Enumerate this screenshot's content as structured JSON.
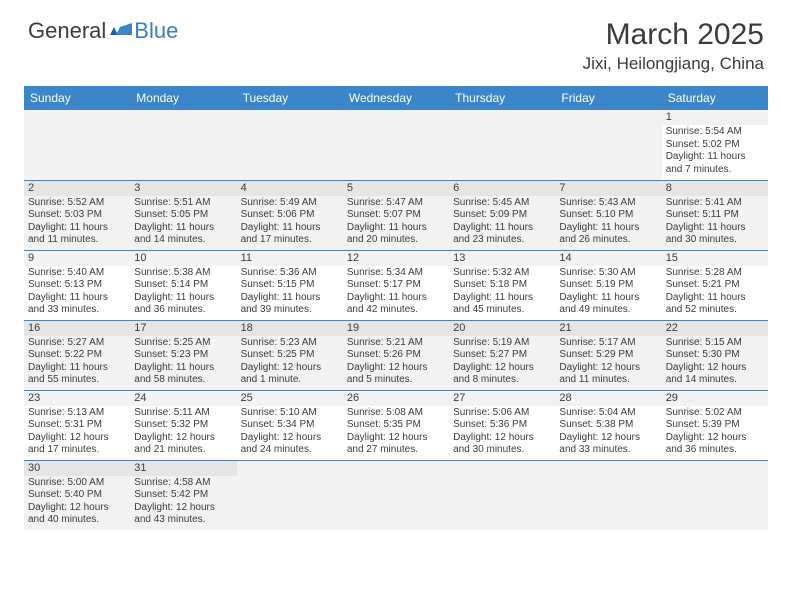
{
  "logo": {
    "general": "General",
    "blue": "Blue"
  },
  "colors": {
    "header_bg": "#3a86c8",
    "header_text": "#ffffff",
    "row_alt": "#f2f2f2",
    "border": "#3a86c8",
    "text": "#3c3c3c",
    "logo_blue": "#3a7fc2"
  },
  "title": "March 2025",
  "location": "Jixi, Heilongjiang, China",
  "weekdays": [
    "Sunday",
    "Monday",
    "Tuesday",
    "Wednesday",
    "Thursday",
    "Friday",
    "Saturday"
  ],
  "weeks": [
    [
      null,
      null,
      null,
      null,
      null,
      null,
      {
        "n": "1",
        "sr": "Sunrise: 5:54 AM",
        "ss": "Sunset: 5:02 PM",
        "dl1": "Daylight: 11 hours",
        "dl2": "and 7 minutes."
      }
    ],
    [
      {
        "n": "2",
        "sr": "Sunrise: 5:52 AM",
        "ss": "Sunset: 5:03 PM",
        "dl1": "Daylight: 11 hours",
        "dl2": "and 11 minutes."
      },
      {
        "n": "3",
        "sr": "Sunrise: 5:51 AM",
        "ss": "Sunset: 5:05 PM",
        "dl1": "Daylight: 11 hours",
        "dl2": "and 14 minutes."
      },
      {
        "n": "4",
        "sr": "Sunrise: 5:49 AM",
        "ss": "Sunset: 5:06 PM",
        "dl1": "Daylight: 11 hours",
        "dl2": "and 17 minutes."
      },
      {
        "n": "5",
        "sr": "Sunrise: 5:47 AM",
        "ss": "Sunset: 5:07 PM",
        "dl1": "Daylight: 11 hours",
        "dl2": "and 20 minutes."
      },
      {
        "n": "6",
        "sr": "Sunrise: 5:45 AM",
        "ss": "Sunset: 5:09 PM",
        "dl1": "Daylight: 11 hours",
        "dl2": "and 23 minutes."
      },
      {
        "n": "7",
        "sr": "Sunrise: 5:43 AM",
        "ss": "Sunset: 5:10 PM",
        "dl1": "Daylight: 11 hours",
        "dl2": "and 26 minutes."
      },
      {
        "n": "8",
        "sr": "Sunrise: 5:41 AM",
        "ss": "Sunset: 5:11 PM",
        "dl1": "Daylight: 11 hours",
        "dl2": "and 30 minutes."
      }
    ],
    [
      {
        "n": "9",
        "sr": "Sunrise: 5:40 AM",
        "ss": "Sunset: 5:13 PM",
        "dl1": "Daylight: 11 hours",
        "dl2": "and 33 minutes."
      },
      {
        "n": "10",
        "sr": "Sunrise: 5:38 AM",
        "ss": "Sunset: 5:14 PM",
        "dl1": "Daylight: 11 hours",
        "dl2": "and 36 minutes."
      },
      {
        "n": "11",
        "sr": "Sunrise: 5:36 AM",
        "ss": "Sunset: 5:15 PM",
        "dl1": "Daylight: 11 hours",
        "dl2": "and 39 minutes."
      },
      {
        "n": "12",
        "sr": "Sunrise: 5:34 AM",
        "ss": "Sunset: 5:17 PM",
        "dl1": "Daylight: 11 hours",
        "dl2": "and 42 minutes."
      },
      {
        "n": "13",
        "sr": "Sunrise: 5:32 AM",
        "ss": "Sunset: 5:18 PM",
        "dl1": "Daylight: 11 hours",
        "dl2": "and 45 minutes."
      },
      {
        "n": "14",
        "sr": "Sunrise: 5:30 AM",
        "ss": "Sunset: 5:19 PM",
        "dl1": "Daylight: 11 hours",
        "dl2": "and 49 minutes."
      },
      {
        "n": "15",
        "sr": "Sunrise: 5:28 AM",
        "ss": "Sunset: 5:21 PM",
        "dl1": "Daylight: 11 hours",
        "dl2": "and 52 minutes."
      }
    ],
    [
      {
        "n": "16",
        "sr": "Sunrise: 5:27 AM",
        "ss": "Sunset: 5:22 PM",
        "dl1": "Daylight: 11 hours",
        "dl2": "and 55 minutes."
      },
      {
        "n": "17",
        "sr": "Sunrise: 5:25 AM",
        "ss": "Sunset: 5:23 PM",
        "dl1": "Daylight: 11 hours",
        "dl2": "and 58 minutes."
      },
      {
        "n": "18",
        "sr": "Sunrise: 5:23 AM",
        "ss": "Sunset: 5:25 PM",
        "dl1": "Daylight: 12 hours",
        "dl2": "and 1 minute."
      },
      {
        "n": "19",
        "sr": "Sunrise: 5:21 AM",
        "ss": "Sunset: 5:26 PM",
        "dl1": "Daylight: 12 hours",
        "dl2": "and 5 minutes."
      },
      {
        "n": "20",
        "sr": "Sunrise: 5:19 AM",
        "ss": "Sunset: 5:27 PM",
        "dl1": "Daylight: 12 hours",
        "dl2": "and 8 minutes."
      },
      {
        "n": "21",
        "sr": "Sunrise: 5:17 AM",
        "ss": "Sunset: 5:29 PM",
        "dl1": "Daylight: 12 hours",
        "dl2": "and 11 minutes."
      },
      {
        "n": "22",
        "sr": "Sunrise: 5:15 AM",
        "ss": "Sunset: 5:30 PM",
        "dl1": "Daylight: 12 hours",
        "dl2": "and 14 minutes."
      }
    ],
    [
      {
        "n": "23",
        "sr": "Sunrise: 5:13 AM",
        "ss": "Sunset: 5:31 PM",
        "dl1": "Daylight: 12 hours",
        "dl2": "and 17 minutes."
      },
      {
        "n": "24",
        "sr": "Sunrise: 5:11 AM",
        "ss": "Sunset: 5:32 PM",
        "dl1": "Daylight: 12 hours",
        "dl2": "and 21 minutes."
      },
      {
        "n": "25",
        "sr": "Sunrise: 5:10 AM",
        "ss": "Sunset: 5:34 PM",
        "dl1": "Daylight: 12 hours",
        "dl2": "and 24 minutes."
      },
      {
        "n": "26",
        "sr": "Sunrise: 5:08 AM",
        "ss": "Sunset: 5:35 PM",
        "dl1": "Daylight: 12 hours",
        "dl2": "and 27 minutes."
      },
      {
        "n": "27",
        "sr": "Sunrise: 5:06 AM",
        "ss": "Sunset: 5:36 PM",
        "dl1": "Daylight: 12 hours",
        "dl2": "and 30 minutes."
      },
      {
        "n": "28",
        "sr": "Sunrise: 5:04 AM",
        "ss": "Sunset: 5:38 PM",
        "dl1": "Daylight: 12 hours",
        "dl2": "and 33 minutes."
      },
      {
        "n": "29",
        "sr": "Sunrise: 5:02 AM",
        "ss": "Sunset: 5:39 PM",
        "dl1": "Daylight: 12 hours",
        "dl2": "and 36 minutes."
      }
    ],
    [
      {
        "n": "30",
        "sr": "Sunrise: 5:00 AM",
        "ss": "Sunset: 5:40 PM",
        "dl1": "Daylight: 12 hours",
        "dl2": "and 40 minutes."
      },
      {
        "n": "31",
        "sr": "Sunrise: 4:58 AM",
        "ss": "Sunset: 5:42 PM",
        "dl1": "Daylight: 12 hours",
        "dl2": "and 43 minutes."
      },
      null,
      null,
      null,
      null,
      null
    ]
  ]
}
